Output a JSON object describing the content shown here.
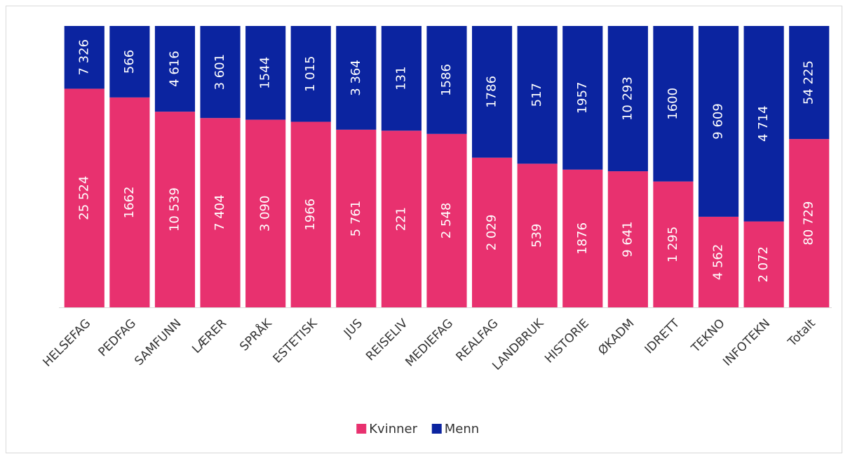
{
  "chart_data": {
    "type": "bar",
    "stacking": "percent",
    "categories": [
      "HELSEFAG",
      "PEDFAG",
      "SAMFUNN",
      "LÆRER",
      "SPRÅK",
      "ESTETISK",
      "JUS",
      "REISELIV",
      "MEDIEFAG",
      "REALFAG",
      "LANDBRUK",
      "HISTORIE",
      "ØKADM",
      "IDRETT",
      "TEKNO",
      "INFOTEKN",
      "Totalt"
    ],
    "series": [
      {
        "name": "Kvinner",
        "color": "#e8316f",
        "values": [
          25524,
          1662,
          10539,
          7404,
          3090,
          1966,
          5761,
          221,
          2548,
          2029,
          539,
          1876,
          9641,
          1295,
          4562,
          2072,
          80729
        ],
        "value_labels": [
          "25 524",
          "1662",
          "10 539",
          "7 404",
          "3 090",
          "1966",
          "5 761",
          "221",
          "2 548",
          "2 029",
          "539",
          "1876",
          "9 641",
          "1 295",
          "4 562",
          "2 072",
          "80 729"
        ]
      },
      {
        "name": "Menn",
        "color": "#0b24a0",
        "values": [
          7326,
          566,
          4616,
          3601,
          1544,
          1015,
          3364,
          131,
          1586,
          1786,
          517,
          1957,
          10293,
          1600,
          9609,
          4714,
          54225
        ],
        "value_labels": [
          "7 326",
          "566",
          "4 616",
          "3 601",
          "1544",
          "1 015",
          "3 364",
          "131",
          "1586",
          "1786",
          "517",
          "1957",
          "10 293",
          "1600",
          "9 609",
          "4 714",
          "54 225"
        ]
      }
    ],
    "legend": "bottom"
  }
}
